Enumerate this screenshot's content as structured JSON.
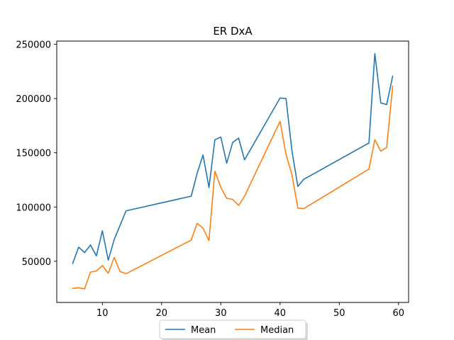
{
  "chart_data": {
    "type": "line",
    "title": "ER DxA",
    "xlabel": "",
    "ylabel": "",
    "xlim": [
      2.3,
      61.7
    ],
    "ylim": [
      12000,
      253000
    ],
    "xticks": [
      10,
      20,
      30,
      40,
      50,
      60
    ],
    "yticks": [
      50000,
      100000,
      150000,
      200000,
      250000
    ],
    "grid": false,
    "legend": {
      "placement": "bottom-center outside",
      "columns": 2
    },
    "series": [
      {
        "name": "Mean",
        "color": "#1f77b4",
        "points": [
          [
            5,
            48000
          ],
          [
            6,
            63000
          ],
          [
            7,
            58000
          ],
          [
            8,
            65000
          ],
          [
            9,
            55000
          ],
          [
            10,
            78000
          ],
          [
            11,
            51000
          ],
          [
            12,
            70000
          ],
          [
            14,
            96500
          ],
          [
            25,
            110000
          ],
          [
            26,
            131000
          ],
          [
            27,
            148000
          ],
          [
            28,
            118000
          ],
          [
            29,
            162000
          ],
          [
            30,
            164500
          ],
          [
            31,
            140500
          ],
          [
            32,
            159500
          ],
          [
            33,
            163500
          ],
          [
            34,
            143500
          ],
          [
            40,
            200500
          ],
          [
            41,
            200000
          ],
          [
            42,
            152000
          ],
          [
            43,
            119000
          ],
          [
            44,
            125500
          ],
          [
            55,
            159000
          ],
          [
            56,
            241500
          ],
          [
            57,
            196000
          ],
          [
            58,
            194500
          ],
          [
            59,
            220500
          ]
        ]
      },
      {
        "name": "Median",
        "color": "#ff7f0e",
        "points": [
          [
            5,
            25000
          ],
          [
            6,
            25500
          ],
          [
            7,
            24500
          ],
          [
            8,
            40000
          ],
          [
            9,
            41000
          ],
          [
            10,
            46000
          ],
          [
            11,
            39000
          ],
          [
            12,
            53500
          ],
          [
            13,
            40500
          ],
          [
            14,
            38500
          ],
          [
            25,
            69500
          ],
          [
            26,
            85000
          ],
          [
            27,
            80500
          ],
          [
            28,
            69000
          ],
          [
            29,
            133000
          ],
          [
            30,
            118000
          ],
          [
            31,
            108000
          ],
          [
            32,
            107000
          ],
          [
            33,
            101500
          ],
          [
            34,
            110000
          ],
          [
            40,
            179000
          ],
          [
            41,
            148500
          ],
          [
            42,
            130000
          ],
          [
            43,
            99000
          ],
          [
            44,
            98500
          ],
          [
            55,
            135000
          ],
          [
            56,
            162000
          ],
          [
            57,
            151500
          ],
          [
            58,
            155000
          ],
          [
            59,
            211500
          ]
        ]
      }
    ]
  }
}
